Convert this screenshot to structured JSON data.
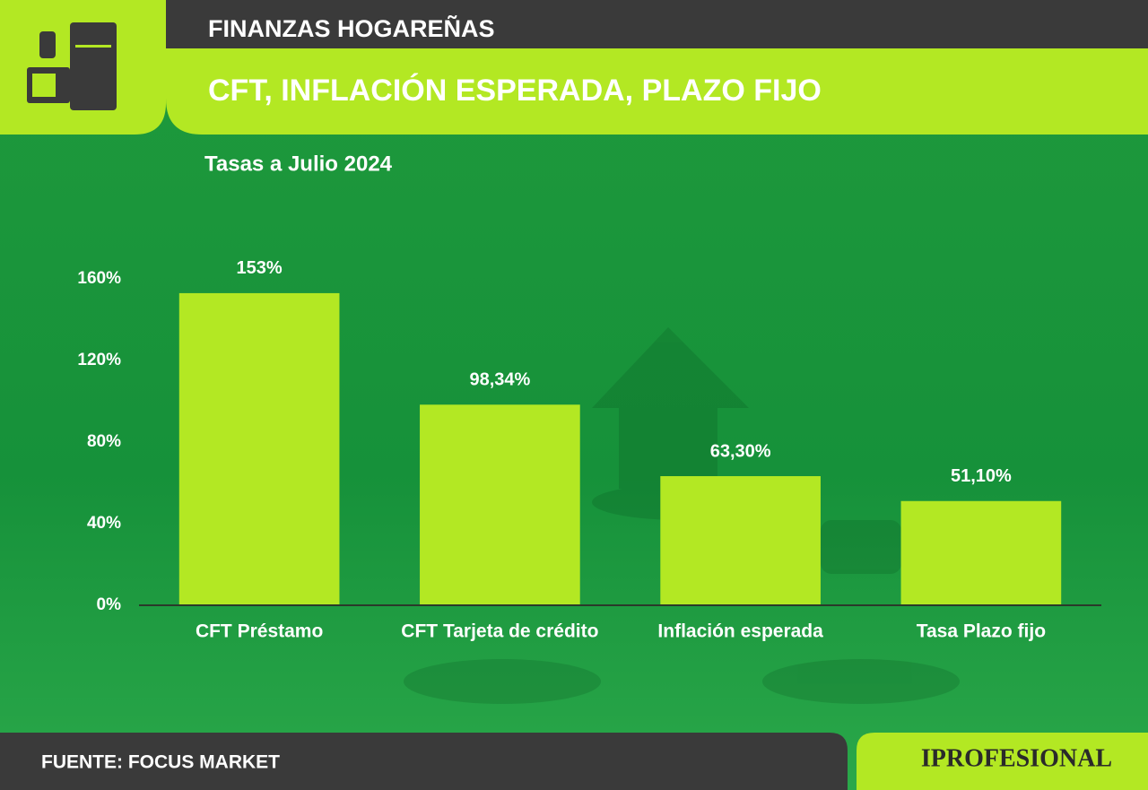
{
  "chart_data": {
    "type": "bar",
    "section": "FINANZAS HOGAREÑAS",
    "title": "CFT, INFLACIÓN ESPERADA, PLAZO FIJO",
    "subtitle": "Tasas a Julio 2024",
    "categories": [
      "CFT Préstamo",
      "CFT Tarjeta de crédito",
      "Inflación esperada",
      "Tasa Plazo fijo"
    ],
    "values": [
      153,
      98.34,
      63.3,
      51.1
    ],
    "value_labels": [
      "153%",
      "98,34%",
      "63,30%",
      "51,10%"
    ],
    "color": "#b3e823",
    "ylim": [
      0,
      160
    ],
    "yticks": [
      {
        "value": 0,
        "label": "0%"
      },
      {
        "value": 40,
        "label": "40%"
      },
      {
        "value": 80,
        "label": "80%"
      },
      {
        "value": 120,
        "label": "120%"
      },
      {
        "value": 160,
        "label": "160%"
      }
    ],
    "grid": false,
    "source": "FUENTE: FOCUS MARKET",
    "brand": "IPROFESIONAL"
  }
}
